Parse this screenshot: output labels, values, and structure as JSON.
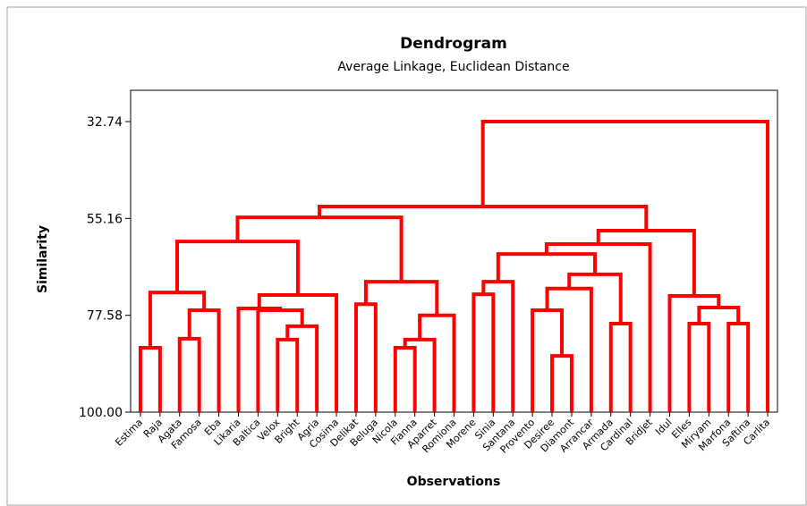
{
  "chart_data": {
    "type": "dendrogram",
    "title": "Dendrogram",
    "subtitle": "Average Linkage, Euclidean Distance",
    "x_label": "Observations",
    "y_label": "Similarity",
    "color": "#ff0000",
    "ylim": [
      100,
      25.5
    ],
    "yticks": [
      {
        "value": 100,
        "label": "100.00"
      },
      77.58,
      55.16,
      32.74
    ],
    "tree": {
      "similarity": 32.74,
      "children": [
        {
          "similarity": 52.4,
          "children": [
            {
              "similarity": 54.9,
              "children": [
                {
                  "similarity": 60.5,
                  "children": [
                    {
                      "similarity": 72.3,
                      "children": [
                        {
                          "similarity": 85.1,
                          "children": [
                            "Estima",
                            "Raja"
                          ]
                        },
                        {
                          "similarity": 76.4,
                          "children": [
                            {
                              "similarity": 83.0,
                              "children": [
                                "Agata",
                                "Famosa"
                              ]
                            },
                            "Eba"
                          ]
                        }
                      ]
                    },
                    {
                      "similarity": 72.9,
                      "children": [
                        {
                          "similarity": 76.0,
                          "children": [
                            "Likaria",
                            {
                              "similarity": 76.4,
                              "children": [
                                "Baltica",
                                {
                                  "similarity": 80.1,
                                  "children": [
                                    {
                                      "similarity": 83.2,
                                      "children": [
                                        "Velox",
                                        "Bright"
                                      ]
                                    },
                                    "Agria"
                                  ]
                                }
                              ]
                            }
                          ]
                        },
                        "Cosima"
                      ]
                    }
                  ]
                },
                {
                  "similarity": 69.8,
                  "children": [
                    {
                      "similarity": 75.0,
                      "children": [
                        "Delikat",
                        "Beluga"
                      ]
                    },
                    {
                      "similarity": 77.6,
                      "children": [
                        {
                          "similarity": 83.2,
                          "children": [
                            {
                              "similarity": 85.1,
                              "children": [
                                "Nicola",
                                "Fianna"
                              ]
                            },
                            "Aparret"
                          ]
                        },
                        "Romiona"
                      ]
                    }
                  ]
                }
              ]
            },
            {
              "similarity": 58.0,
              "children": [
                {
                  "similarity": 61.1,
                  "children": [
                    {
                      "similarity": 63.4,
                      "children": [
                        {
                          "similarity": 69.8,
                          "children": [
                            {
                              "similarity": 72.7,
                              "children": [
                                "Morene",
                                "Sinia"
                              ]
                            },
                            "Santana"
                          ]
                        },
                        {
                          "similarity": 68.1,
                          "children": [
                            {
                              "similarity": 71.4,
                              "children": [
                                {
                                  "similarity": 76.4,
                                  "children": [
                                    "Provento",
                                    {
                                      "similarity": 87.0,
                                      "children": [
                                        "Desiree",
                                        "Diamont"
                                      ]
                                    }
                                  ]
                                },
                                "Arrancar"
                              ]
                            },
                            {
                              "similarity": 79.5,
                              "children": [
                                "Armada",
                                "Cardinal"
                              ]
                            }
                          ]
                        }
                      ]
                    },
                    "Bridjet"
                  ]
                },
                {
                  "similarity": 73.1,
                  "children": [
                    "Idul",
                    {
                      "similarity": 75.8,
                      "children": [
                        {
                          "similarity": 79.5,
                          "children": [
                            "Elles",
                            "Miryam"
                          ]
                        },
                        {
                          "similarity": 79.5,
                          "children": [
                            "Marfona",
                            "Saftina"
                          ]
                        }
                      ]
                    }
                  ]
                }
              ]
            }
          ]
        },
        "Carlita"
      ]
    }
  }
}
